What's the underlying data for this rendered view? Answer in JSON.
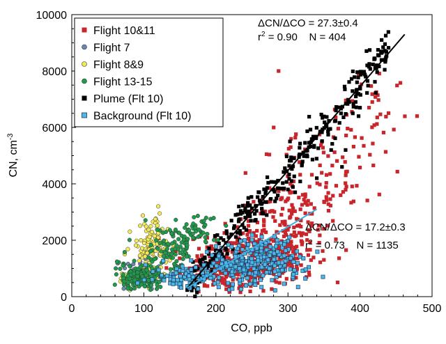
{
  "chart_data": {
    "type": "scatter",
    "xlabel": "CO, ppb",
    "ylabel": "CN, cm",
    "ylabel_sup": "-3",
    "xlim": [
      0,
      500
    ],
    "ylim": [
      0,
      10000
    ],
    "xticks": [
      0,
      100,
      200,
      300,
      400,
      500
    ],
    "yticks": [
      0,
      2000,
      4000,
      6000,
      8000,
      10000
    ],
    "grid": false,
    "legend_position": "top-left",
    "series": [
      {
        "name": "Flight 10&11",
        "color": "#c8262b",
        "marker": "square",
        "clusters": [
          {
            "cx": 260,
            "cy": 1500,
            "sx": 40,
            "sy": 500,
            "n": 300
          },
          {
            "cx": 215,
            "cy": 900,
            "sx": 35,
            "sy": 350,
            "n": 170
          },
          {
            "cx": 300,
            "cy": 2800,
            "sx": 30,
            "sy": 800,
            "n": 110
          },
          {
            "cx": 350,
            "cy": 4600,
            "sx": 40,
            "sy": 900,
            "n": 70
          },
          {
            "cx": 410,
            "cy": 6600,
            "sx": 25,
            "sy": 700,
            "n": 35
          }
        ],
        "points": [
          [
            287,
            8000
          ],
          [
            330,
            3900
          ],
          [
            305,
            3700
          ],
          [
            328,
            3400
          ],
          [
            318,
            2700
          ]
        ]
      },
      {
        "name": "Flight 7",
        "color": "#6a87b0",
        "marker": "circle",
        "clusters": [
          {
            "cx": 95,
            "cy": 800,
            "sx": 12,
            "sy": 350,
            "n": 40
          }
        ],
        "points": [
          [
            102,
            1350
          ],
          [
            95,
            1420
          ]
        ]
      },
      {
        "name": "Flight 8&9",
        "color": "#f2ea5a",
        "marker": "circle",
        "clusters": [
          {
            "cx": 112,
            "cy": 1700,
            "sx": 14,
            "sy": 500,
            "n": 120
          },
          {
            "cx": 82,
            "cy": 620,
            "sx": 8,
            "sy": 120,
            "n": 30
          }
        ],
        "points": [
          [
            120,
            3200
          ],
          [
            122,
            2950
          ],
          [
            116,
            2750
          ]
        ]
      },
      {
        "name": "Flight 13-15",
        "color": "#1f9a4b",
        "marker": "circle",
        "clusters": [
          {
            "cx": 95,
            "cy": 700,
            "sx": 14,
            "sy": 250,
            "n": 150
          },
          {
            "cx": 140,
            "cy": 1600,
            "sx": 18,
            "sy": 450,
            "n": 100
          },
          {
            "cx": 175,
            "cy": 2300,
            "sx": 12,
            "sy": 300,
            "n": 40
          }
        ],
        "points": []
      },
      {
        "name": "Plume (Flt 10)",
        "color": "#000000",
        "marker": "square",
        "along_line": {
          "x0": 160,
          "x1": 440,
          "spread_y": 380,
          "n": 320
        },
        "points": [
          [
            430,
            9100
          ],
          [
            425,
            8750
          ],
          [
            420,
            8450
          ],
          [
            410,
            8200
          ],
          [
            395,
            7300
          ],
          [
            385,
            6900
          ],
          [
            400,
            6700
          ],
          [
            390,
            6500
          ],
          [
            398,
            6400
          ],
          [
            380,
            5200
          ],
          [
            360,
            5200
          ],
          [
            375,
            4600
          ],
          [
            340,
            4200
          ],
          [
            305,
            4100
          ],
          [
            310,
            3700
          ],
          [
            300,
            3800
          ],
          [
            260,
            3700
          ],
          [
            245,
            3500
          ]
        ]
      },
      {
        "name": "Background (Flt 10)",
        "color": "#4fb8e8",
        "marker": "square",
        "clusters": [
          {
            "cx": 240,
            "cy": 1000,
            "sx": 40,
            "sy": 300,
            "n": 220
          },
          {
            "cx": 270,
            "cy": 1500,
            "sx": 20,
            "sy": 350,
            "n": 90
          },
          {
            "cx": 155,
            "cy": 700,
            "sx": 25,
            "sy": 200,
            "n": 70
          }
        ],
        "points": [
          [
            230,
            1700
          ],
          [
            245,
            1850
          ],
          [
            285,
            2000
          ],
          [
            290,
            1900
          ]
        ]
      }
    ],
    "fit_lines": [
      {
        "color": "#000000",
        "x0": 160,
        "y0": 300,
        "x1": 462,
        "y1": 9300
      },
      {
        "color": "#3aaee0",
        "x0": 160,
        "y0": 300,
        "x1": 340,
        "y1": 3100
      }
    ],
    "annotations": [
      {
        "id": "plume",
        "lines": [
          "ΔCN/ΔCO = 27.3±0.4",
          "r",
          "2",
          " = 0.90    N = 404"
        ]
      },
      {
        "id": "background",
        "lines": [
          "ΔCN/ΔCO = 17.2±0.3",
          "r",
          "2",
          " = 0.73    N = 1135"
        ]
      }
    ]
  }
}
